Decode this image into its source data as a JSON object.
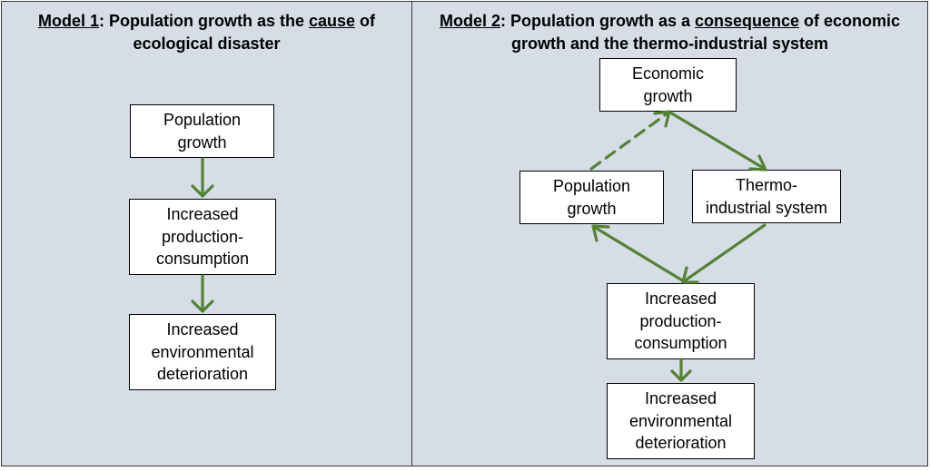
{
  "model1": {
    "title_prefix": "Model 1",
    "title_mid": ": Population growth as the ",
    "title_em": "cause",
    "title_suffix": " of",
    "title_line2": "ecological disaster",
    "nodes": {
      "population": [
        "Population",
        "growth"
      ],
      "production": [
        "Increased",
        "production-",
        "consumption"
      ],
      "environment": [
        "Increased",
        "environmental",
        "deterioration"
      ]
    }
  },
  "model2": {
    "title_prefix": "Model 2",
    "title_mid": ": Population growth as a ",
    "title_em": "consequence",
    "title_suffix": " of economic",
    "title_line2": "growth and the thermo-industrial system",
    "nodes": {
      "economic": [
        "Economic",
        "growth"
      ],
      "population": [
        "Population",
        "growth"
      ],
      "thermo": [
        "Thermo-",
        "industrial system"
      ],
      "production": [
        "Increased",
        "production-",
        "consumption"
      ],
      "environment": [
        "Increased",
        "environmental",
        "deterioration"
      ]
    }
  },
  "colors": {
    "arrow": "#548235",
    "panel": "#d6dde7"
  }
}
